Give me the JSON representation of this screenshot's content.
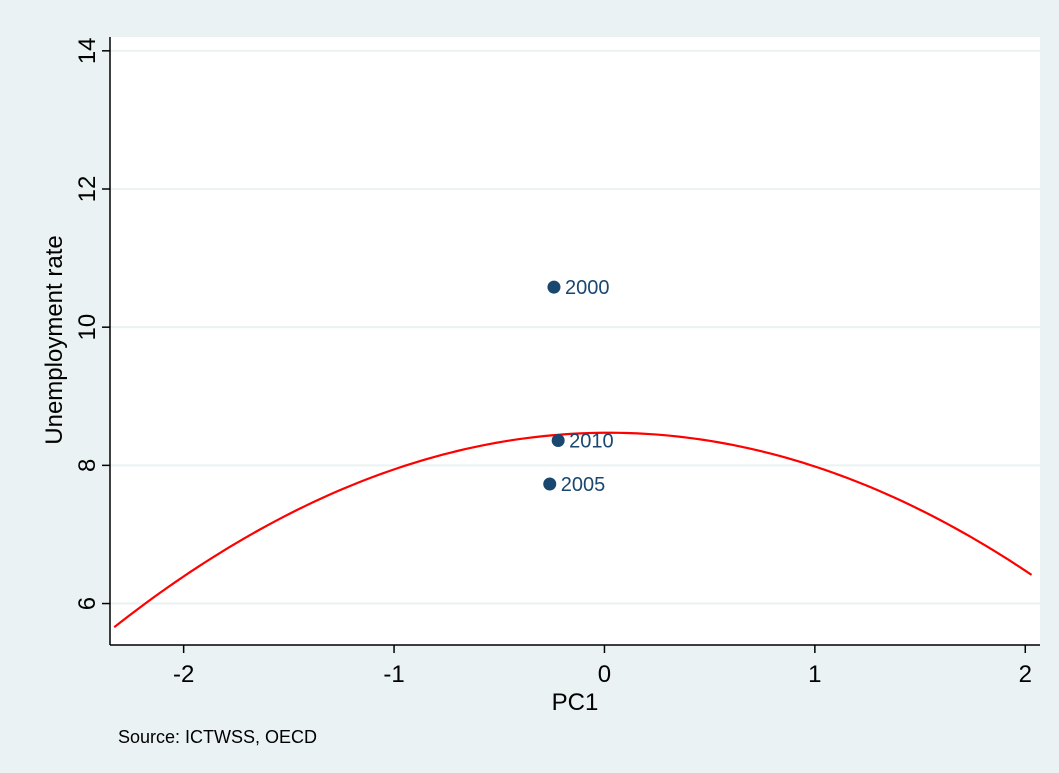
{
  "chart_data": {
    "type": "scatter",
    "xlabel": "PC1",
    "ylabel": "Unemployment rate",
    "note": "Source: ICTWSS, OECD",
    "xlim": [
      -2.35,
      2.07
    ],
    "ylim": [
      5.4,
      14.2
    ],
    "x_ticks": [
      -2,
      -1,
      0,
      1,
      2
    ],
    "x_tick_labels": [
      "-2",
      "-1",
      "0",
      "1",
      "2"
    ],
    "y_ticks": [
      6,
      8,
      10,
      12,
      14
    ],
    "y_tick_labels": [
      "6",
      "8",
      "10",
      "12",
      "14"
    ],
    "grid": true,
    "points": [
      {
        "label": "2000",
        "x": -0.24,
        "y": 10.58
      },
      {
        "label": "2010",
        "x": -0.22,
        "y": 8.36
      },
      {
        "label": "2005",
        "x": -0.26,
        "y": 7.73
      }
    ],
    "fit": {
      "type": "quadratic",
      "x_range": [
        -2.33,
        2.03
      ],
      "sample_x": [
        -2.33,
        -2.0,
        -1.5,
        -1.0,
        -0.5,
        0.0,
        0.5,
        1.0,
        1.5,
        2.0,
        2.03
      ],
      "sample_y": [
        5.68,
        6.38,
        7.28,
        7.93,
        8.33,
        8.48,
        8.38,
        8.0,
        7.32,
        6.48,
        6.42
      ]
    },
    "colors": {
      "background": "#eaf2f3",
      "plot_area": "#ffffff",
      "grid": "#eaf2f3",
      "marker": "#1a476f",
      "fit_line": "#ff0000"
    }
  }
}
